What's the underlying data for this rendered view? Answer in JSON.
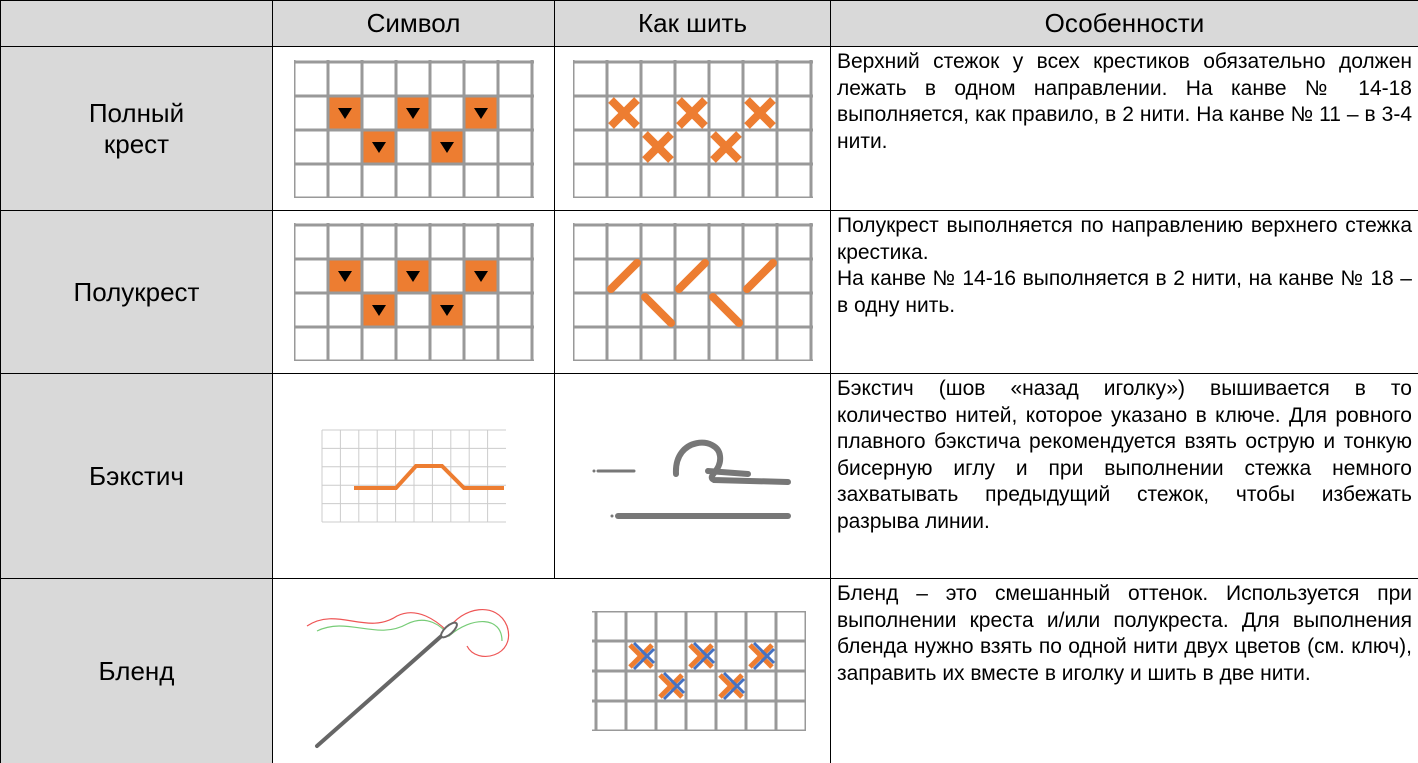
{
  "table": {
    "header": [
      "Символ",
      "Как шить",
      "Особенности"
    ],
    "rows": [
      {
        "name": "Полный крест",
        "description": [
          "Верхний стежок у всех крестиков обязательно должен лежать в одном направлении. На канве № 14-18 выполняется, как правило, в 2 нити. На канве № 11 – в 3-4 нити."
        ]
      },
      {
        "name": "Полукрест",
        "description": [
          "Полукрест выполняется по направлению верхнего стежка крестика.",
          "На канве № 14-16 выполняется в 2 нити, на канве № 18 –  в одну нить."
        ]
      },
      {
        "name": "Бэкстич",
        "description": [
          "Бэкстич (шов «назад иголку») вышивается в то количество нитей, которое указано в ключе. Для ровного плавного бэкстича рекомендуется взять острую и тонкую бисерную иглу и при выполнении стежка немного захватывать предыдущий стежок, чтобы избежать разрыва линии."
        ]
      },
      {
        "name": "Бленд",
        "description": [
          "Бленд – это смешанный оттенок. Используется при выполнении креста и/или полукреста. Для выполнения бленда нужно взять по одной нити двух цветов (см. ключ), заправить их вместе в иголку и шить в две нити."
        ]
      }
    ]
  }
}
